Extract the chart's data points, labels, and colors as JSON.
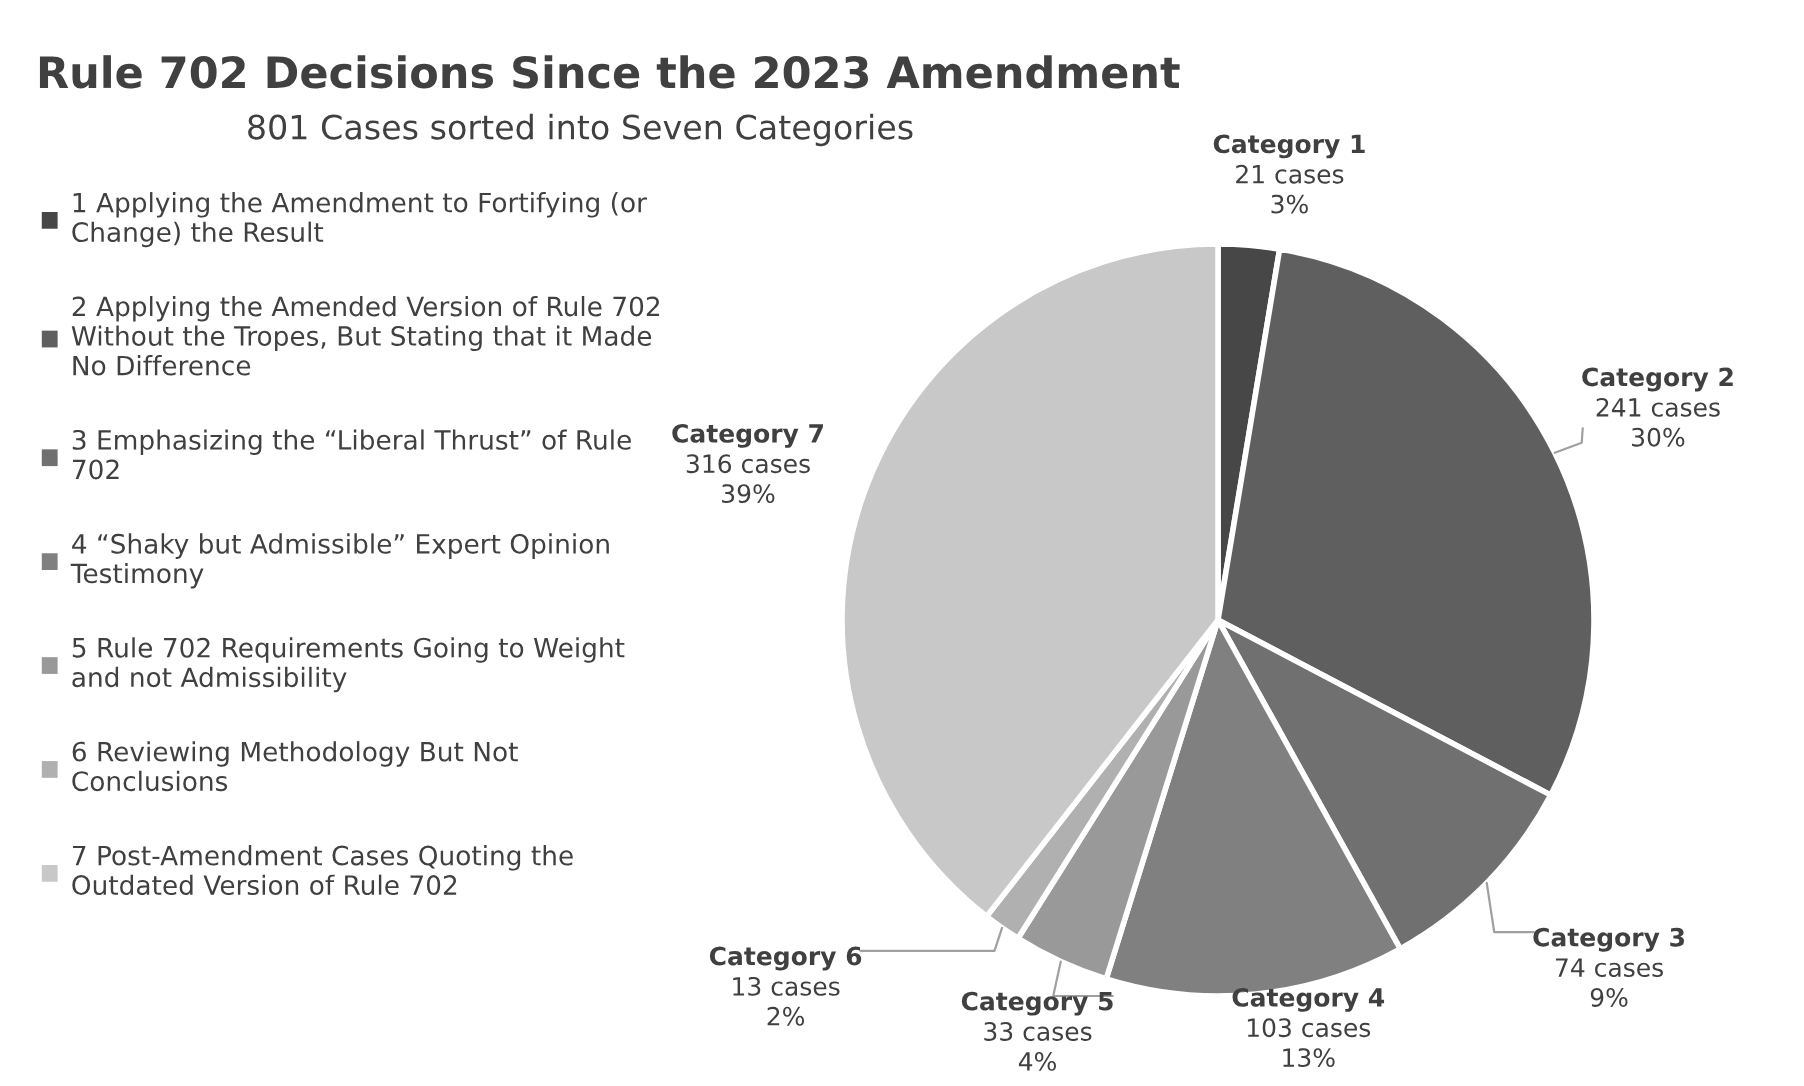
{
  "chart_data": {
    "type": "pie",
    "title": "Rule 702 Decisions Since the 2023 Amendment",
    "subtitle": "801 Cases sorted into Seven Categories",
    "categories": [
      "1 Applying the Amendment to Fortifying (or Change) the Result",
      "2 Applying the Amended Version of Rule 702 Without the Tropes, But Stating that it Made No Difference",
      "3 Emphasizing the “Liberal Thrust” of Rule 702",
      "4 “Shaky but Admissible” Expert Opinion Testimony",
      "5 Rule 702 Requirements Going to Weight and not Admissibility",
      "6 Reviewing Methodology But Not Conclusions",
      "7 Post-Amendment Cases Quoting the Outdated Version of Rule 702"
    ],
    "values": [
      21,
      241,
      74,
      103,
      33,
      13,
      316
    ],
    "colors": [
      "#474747",
      "#5f5f5f",
      "#707070",
      "#808080",
      "#999999",
      "#b0b0b0",
      "#c8c8c8"
    ],
    "value_labels": [
      "Category 1\n21 cases\n3%",
      "Category 2\n241 cases\n30%",
      "Category 3\n74 cases\n9%",
      "Category 4\n103 cases\n13%",
      "Category 5\n33 cases\n4%",
      "Category 6\n13 cases\n2%",
      "Category 7\n316 cases\n39%"
    ],
    "legend": "left"
  }
}
